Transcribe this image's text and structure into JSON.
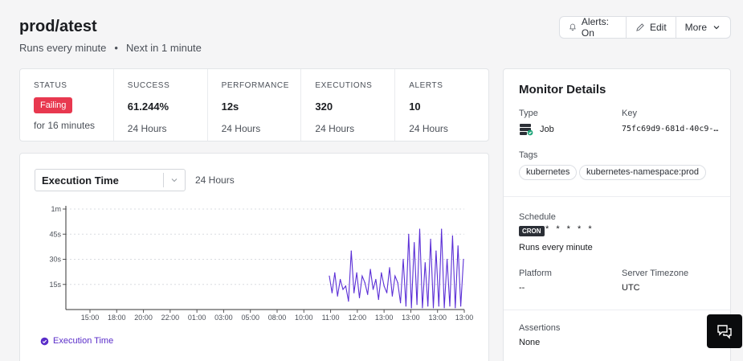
{
  "header": {
    "title": "prod/atest",
    "schedule": "Runs every minute",
    "separator": "•",
    "next_run": "Next in 1 minute"
  },
  "toolbar": {
    "alerts_label": "Alerts: On",
    "edit_label": "Edit",
    "more_label": "More"
  },
  "stats": [
    {
      "label": "STATUS",
      "badge": "Failing",
      "sub": "for 16 minutes"
    },
    {
      "label": "SUCCESS",
      "value": "61.244%",
      "sub": "24 Hours"
    },
    {
      "label": "PERFORMANCE",
      "value": "12s",
      "sub": "24 Hours"
    },
    {
      "label": "EXECUTIONS",
      "value": "320",
      "sub": "24 Hours"
    },
    {
      "label": "ALERTS",
      "value": "10",
      "sub": "24 Hours"
    }
  ],
  "chart_panel": {
    "metric_select": "Execution Time",
    "range": "24 Hours",
    "legend": "Execution Time"
  },
  "chart_data": {
    "type": "line",
    "series": [
      {
        "name": "Execution Time",
        "color": "#5b2fd6",
        "x": [
          10.4,
          10.5,
          10.6,
          10.7,
          10.8,
          10.9,
          11.0,
          11.1,
          11.2,
          11.3,
          11.4,
          11.5,
          11.6,
          11.7,
          11.8,
          11.9,
          12.0,
          12.1,
          12.2,
          12.3,
          12.4,
          12.5,
          12.6,
          12.7,
          12.8,
          12.9,
          13.0,
          13.1,
          13.2,
          13.3,
          13.4,
          13.5,
          13.6,
          13.7,
          13.8,
          13.9,
          14.0,
          14.1,
          14.2,
          14.3,
          14.4,
          14.5,
          14.6,
          14.7,
          14.8,
          14.9,
          15.0,
          15.1,
          15.2,
          15.3
        ],
        "y": [
          20,
          10,
          22,
          8,
          18,
          12,
          14,
          5,
          35,
          10,
          22,
          7,
          20,
          16,
          9,
          24,
          12,
          18,
          6,
          22,
          14,
          10,
          25,
          8,
          20,
          16,
          4,
          30,
          2,
          45,
          1,
          40,
          3,
          48,
          1,
          28,
          2,
          42,
          1,
          35,
          2,
          48,
          1,
          30,
          2,
          44,
          1,
          38,
          2,
          30
        ]
      }
    ],
    "x_ticks": [
      "15:00",
      "18:00",
      "20:00",
      "22:00",
      "01:00",
      "03:00",
      "05:00",
      "08:00",
      "10:00",
      "11:00",
      "12:00",
      "13:00",
      "13:00",
      "13:00",
      "13:00"
    ],
    "y_ticks": [
      "15s",
      "30s",
      "45s",
      "1m"
    ],
    "y_unit": "seconds",
    "ylim": [
      0,
      60
    ],
    "grid": true,
    "legend_position": "bottom-left"
  },
  "details": {
    "title": "Monitor Details",
    "type_label": "Type",
    "type_value": "Job",
    "key_label": "Key",
    "key_value": "75fc69d9-681d-40c9-…",
    "tags_label": "Tags",
    "tags": [
      "kubernetes",
      "kubernetes-namespace:prod"
    ],
    "schedule_label": "Schedule",
    "cron_badge": "CRON",
    "cron_expr": "* * * * *",
    "schedule_desc": "Runs every minute",
    "platform_label": "Platform",
    "platform_value": "--",
    "timezone_label": "Server Timezone",
    "timezone_value": "UTC",
    "assertions_label": "Assertions",
    "assertions_value": "None"
  },
  "colors": {
    "failing": "#e8384f",
    "series": "#5b2fd6",
    "legend": "#5a2dc9"
  }
}
